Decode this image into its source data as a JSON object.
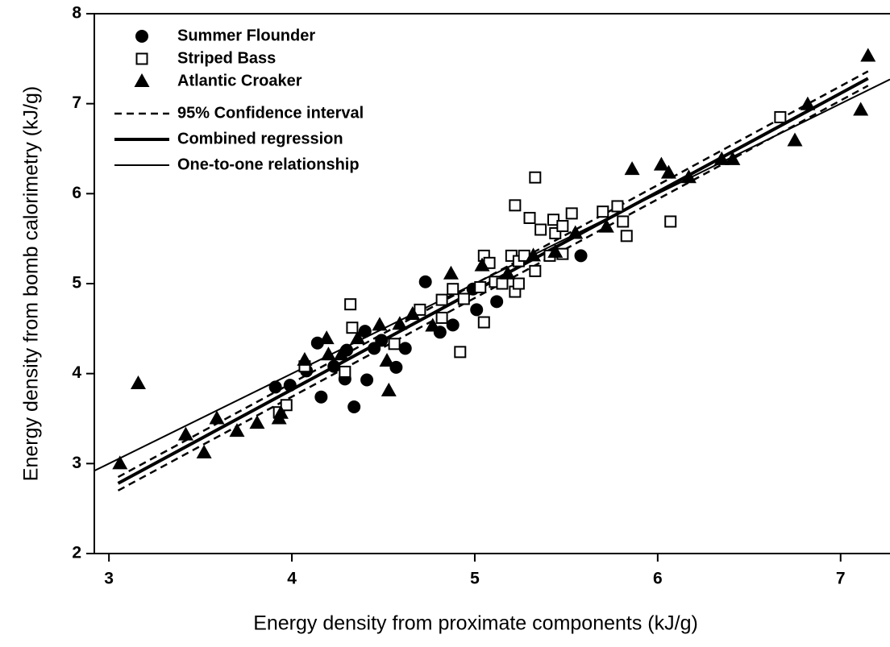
{
  "chart_data": {
    "type": "scatter",
    "x_label": "Energy density from proximate components (kJ/g)",
    "y_label": "Energy density from bomb calorimetry (kJ/g)",
    "xlim": [
      2.92,
      7.27
    ],
    "ylim": [
      2,
      8
    ],
    "xticks": [
      3,
      4,
      5,
      6,
      7
    ],
    "yticks": [
      2,
      3,
      4,
      5,
      6,
      7,
      8
    ],
    "legend": "upper left",
    "series": [
      {
        "name": "Summer Flounder",
        "marker": "circle",
        "color": "#000000",
        "x": [
          3.91,
          3.99,
          4.16,
          4.14,
          4.29,
          4.41,
          4.34,
          4.4,
          4.45,
          4.49,
          4.62,
          4.57,
          4.73,
          4.81,
          4.88,
          4.99,
          5.01,
          5.12,
          5.58,
          4.23,
          4.3,
          4.08
        ],
        "values": [
          3.85,
          3.87,
          3.74,
          4.34,
          3.94,
          3.93,
          3.63,
          4.47,
          4.28,
          4.37,
          4.28,
          4.07,
          5.02,
          4.46,
          4.54,
          4.94,
          4.71,
          4.8,
          5.31,
          4.08,
          4.26,
          4.03
        ]
      },
      {
        "name": "Striped Bass",
        "marker": "square",
        "color": "#000000",
        "x": [
          4.32,
          4.33,
          3.93,
          3.97,
          4.07,
          4.29,
          4.56,
          4.7,
          4.82,
          4.82,
          4.88,
          4.92,
          4.94,
          5.03,
          5.05,
          5.05,
          5.08,
          5.11,
          5.15,
          5.22,
          5.2,
          5.24,
          5.22,
          5.24,
          5.27,
          5.3,
          5.33,
          5.33,
          5.36,
          5.41,
          5.43,
          5.44,
          5.48,
          5.53,
          5.48,
          5.7,
          5.78,
          5.83,
          5.81,
          6.07,
          6.67
        ],
        "values": [
          4.77,
          4.51,
          3.57,
          3.65,
          4.08,
          4.02,
          4.33,
          4.71,
          4.62,
          4.82,
          4.94,
          4.24,
          4.83,
          4.96,
          5.31,
          4.57,
          5.23,
          5.02,
          5.0,
          4.91,
          5.31,
          5.25,
          5.87,
          5.0,
          5.31,
          5.73,
          6.18,
          5.14,
          5.6,
          5.31,
          5.71,
          5.56,
          5.64,
          5.78,
          5.33,
          5.8,
          5.86,
          5.53,
          5.69,
          5.69,
          6.85
        ]
      },
      {
        "name": "Atlantic Croaker",
        "marker": "triangle",
        "color": "#000000",
        "x": [
          3.06,
          3.16,
          3.42,
          3.52,
          3.59,
          3.7,
          3.81,
          3.93,
          3.94,
          4.07,
          4.19,
          4.2,
          4.27,
          4.36,
          4.48,
          4.52,
          4.53,
          4.59,
          4.66,
          4.77,
          4.87,
          5.04,
          5.18,
          5.32,
          5.44,
          5.55,
          5.72,
          5.86,
          6.02,
          6.06,
          6.17,
          6.35,
          6.41,
          6.82,
          6.75,
          7.11,
          7.15
        ],
        "values": [
          3.0,
          3.89,
          3.32,
          3.12,
          3.5,
          3.36,
          3.45,
          3.5,
          3.56,
          4.15,
          4.39,
          4.21,
          4.21,
          4.39,
          4.54,
          4.14,
          3.81,
          4.55,
          4.66,
          4.53,
          5.11,
          5.2,
          5.11,
          5.31,
          5.35,
          5.56,
          5.63,
          6.27,
          6.32,
          6.23,
          6.18,
          6.38,
          6.38,
          6.99,
          6.59,
          6.93,
          7.53
        ]
      }
    ],
    "lines": [
      {
        "name": "95% Confidence interval",
        "style": "dashed",
        "x": [
          3.05,
          7.15
        ],
        "upper": [
          2.85,
          7.36
        ],
        "lower": [
          2.7,
          7.2
        ]
      },
      {
        "name": "Combined regression",
        "style": "thick",
        "x": [
          3.05,
          7.15
        ],
        "values": [
          2.78,
          7.28
        ]
      },
      {
        "name": "One-to-one relationship",
        "style": "thin",
        "x": [
          2.92,
          7.27
        ],
        "values": [
          2.92,
          7.27
        ]
      }
    ]
  }
}
